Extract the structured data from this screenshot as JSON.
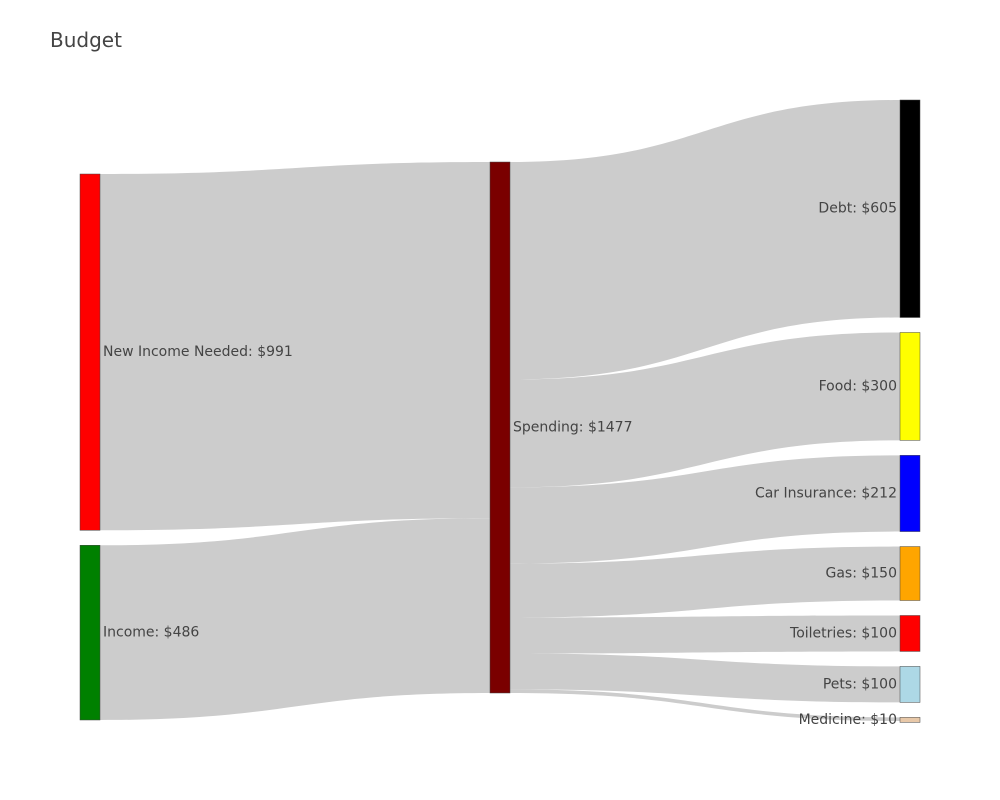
{
  "chart_data": {
    "type": "sankey",
    "title": "Budget",
    "link_color": "#cccccc",
    "nodes": [
      {
        "id": "new_income",
        "label": "New Income Needed: $991",
        "value": 991,
        "color": "#ff0000",
        "column": 0
      },
      {
        "id": "income",
        "label": "Income: $486",
        "value": 486,
        "color": "#008000",
        "column": 0
      },
      {
        "id": "spending",
        "label": "Spending: $1477",
        "value": 1477,
        "color": "#7a0000",
        "column": 1
      },
      {
        "id": "debt",
        "label": "Debt: $605",
        "value": 605,
        "color": "#000000",
        "column": 2
      },
      {
        "id": "food",
        "label": "Food: $300",
        "value": 300,
        "color": "#ffff00",
        "column": 2
      },
      {
        "id": "car_insurance",
        "label": "Car Insurance: $212",
        "value": 212,
        "color": "#0000ff",
        "column": 2
      },
      {
        "id": "gas",
        "label": "Gas: $150",
        "value": 150,
        "color": "#ffa500",
        "column": 2
      },
      {
        "id": "toiletries",
        "label": "Toiletries: $100",
        "value": 100,
        "color": "#ff0000",
        "column": 2
      },
      {
        "id": "pets",
        "label": "Pets: $100",
        "value": 100,
        "color": "#add8e6",
        "column": 2
      },
      {
        "id": "medicine",
        "label": "Medicine: $10",
        "value": 10,
        "color": "#e8c8a8",
        "column": 2
      }
    ],
    "links": [
      {
        "source": "new_income",
        "target": "spending",
        "value": 991
      },
      {
        "source": "income",
        "target": "spending",
        "value": 486
      },
      {
        "source": "spending",
        "target": "debt",
        "value": 605
      },
      {
        "source": "spending",
        "target": "food",
        "value": 300
      },
      {
        "source": "spending",
        "target": "car_insurance",
        "value": 212
      },
      {
        "source": "spending",
        "target": "gas",
        "value": 150
      },
      {
        "source": "spending",
        "target": "toiletries",
        "value": 100
      },
      {
        "source": "spending",
        "target": "pets",
        "value": 100
      },
      {
        "source": "spending",
        "target": "medicine",
        "value": 10
      }
    ]
  }
}
